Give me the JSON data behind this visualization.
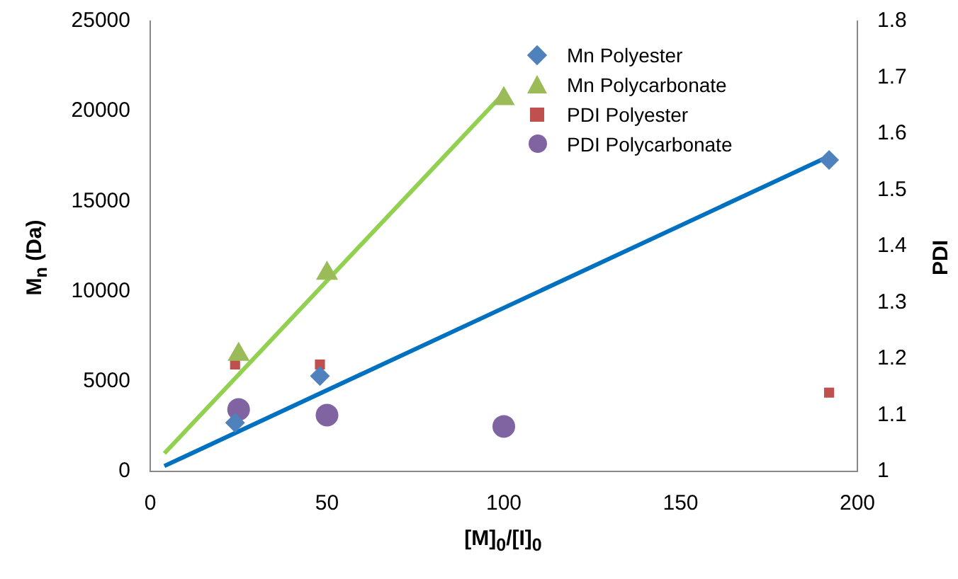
{
  "chart_data": {
    "type": "scatter",
    "xlabel": "[M]$_{0}$/[I]$_{0}$",
    "ylabel": "M$_{n}$ (Da)",
    "y2label": "PDI",
    "xlim": [
      0,
      200
    ],
    "xticks": [
      0,
      50,
      100,
      150,
      200
    ],
    "ylim": [
      0,
      25000
    ],
    "yticks": [
      0,
      5000,
      10000,
      15000,
      20000,
      25000
    ],
    "y2lim": [
      1,
      1.8
    ],
    "y2ticks": [
      1,
      1.1,
      1.2,
      1.3,
      1.4,
      1.5,
      1.6,
      1.7,
      1.8
    ],
    "grid": false,
    "legend": "top right",
    "series": [
      {
        "name": "Mn Polyester",
        "color": "#4f81bd",
        "marker": "diamond",
        "x": [
          24,
          48,
          192
        ],
        "values": [
          2700,
          5300,
          17300
        ]
      },
      {
        "name": "Mn Polycarbonate",
        "color": "#9bbb59",
        "marker": "triangle",
        "x": [
          25,
          50,
          100
        ],
        "values": [
          6500,
          11000,
          20700
        ]
      },
      {
        "name": "PDI Polyester",
        "color": "#c0504d",
        "marker": "square",
        "axis": "y2",
        "x": [
          24,
          48,
          192
        ],
        "values": [
          1.19,
          1.19,
          1.14
        ]
      },
      {
        "name": "PDI Polycarbonate",
        "color": "#8064a2",
        "marker": "circle",
        "axis": "y2",
        "x": [
          25,
          50,
          100
        ],
        "values": [
          1.11,
          1.1,
          1.08
        ]
      },
      {
        "type": "line",
        "color": "#0070c0",
        "marker": "none",
        "x": [
          4,
          192
        ],
        "values": [
          300,
          17500
        ]
      },
      {
        "type": "line",
        "color": "#92d050",
        "marker": "none",
        "x": [
          4,
          100
        ],
        "values": [
          1000,
          21000
        ]
      }
    ]
  }
}
